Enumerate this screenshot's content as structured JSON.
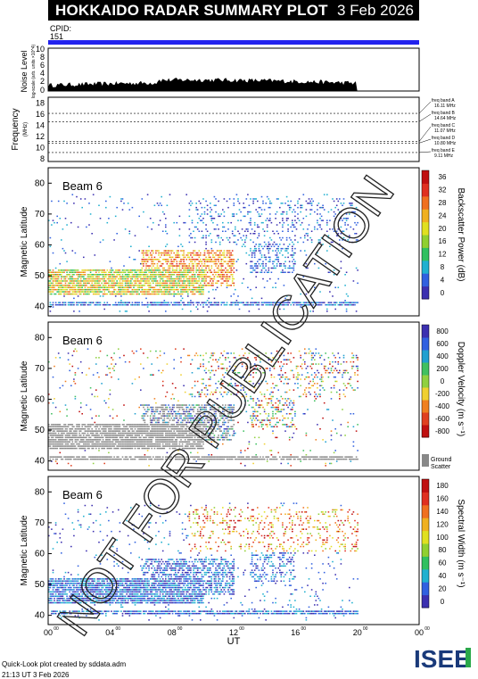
{
  "header": {
    "title": "HOKKAIDO RADAR SUMMARY PLOT",
    "date": "3 Feb 2026"
  },
  "cpid": {
    "label": "CPID:",
    "value": "151"
  },
  "noise": {
    "ylabel": "Noise Level",
    "ylabel_sub": "log-scale (arb. units ×10^4)"
  },
  "frequency": {
    "ylabel": "Frequency",
    "unit": "(MHz)",
    "ticks": [
      "8",
      "10",
      "12",
      "14",
      "16",
      "18"
    ],
    "bands": [
      {
        "name": "freq band A",
        "value": "16.11 MHz",
        "mhz": 16.11
      },
      {
        "name": "freq band B",
        "value": "14.64 MHz",
        "mhz": 14.64
      },
      {
        "name": "freq band C",
        "value": "11.07 MHz",
        "mhz": 11.07
      },
      {
        "name": "freq band D",
        "value": "10.80 MHz",
        "mhz": 10.8
      },
      {
        "name": "freq band E",
        "value": "9.11 MHz",
        "mhz": 9.11
      }
    ]
  },
  "panels": [
    {
      "beam": "Beam  6",
      "ylabel": "Magnetic Latitude",
      "colorbar_label": "Backscatter Power (dB)",
      "colorbar_ticks": [
        "0",
        "4",
        "8",
        "12",
        "16",
        "20",
        "24",
        "28",
        "32",
        "36"
      ]
    },
    {
      "beam": "Beam  6",
      "ylabel": "Magnetic Latitude",
      "colorbar_label": "Doppler Velocity (m s⁻¹)",
      "colorbar_ticks": [
        "-800",
        "-600",
        "-400",
        "-200",
        "0",
        "200",
        "400",
        "600",
        "800"
      ],
      "ground_label": "Ground",
      "ground_label2": "Scatter"
    },
    {
      "beam": "Beam  6",
      "ylabel": "Magnetic Latitude",
      "colorbar_label": "Spectral Width (m s⁻¹)",
      "colorbar_ticks": [
        "0",
        "20",
        "40",
        "60",
        "80",
        "100",
        "120",
        "140",
        "160",
        "180"
      ]
    }
  ],
  "lat_ticks": [
    "40",
    "50",
    "60",
    "70",
    "80"
  ],
  "x_ticks": [
    "00",
    "04",
    "08",
    "12",
    "16",
    "20",
    "00"
  ],
  "x_tick_sup": "00",
  "xlabel": "UT",
  "watermark": "NOT FOR PUBLICATION",
  "footer": {
    "line1": "Quick-Look plot created by sddata.adm",
    "line2": "21:13 UT  3 Feb 2026"
  },
  "logo": "ISEE",
  "colors": {
    "header_bg": "#000000",
    "cpid_bar": "#2222ee",
    "ground_scatter": "#888888"
  },
  "chart_data": {
    "type": "heatmap",
    "x_range_hours": [
      0,
      24
    ],
    "y_range_lat": [
      37,
      85
    ],
    "data_end_hour": 20,
    "frequency_range": [
      7.5,
      19
    ]
  }
}
